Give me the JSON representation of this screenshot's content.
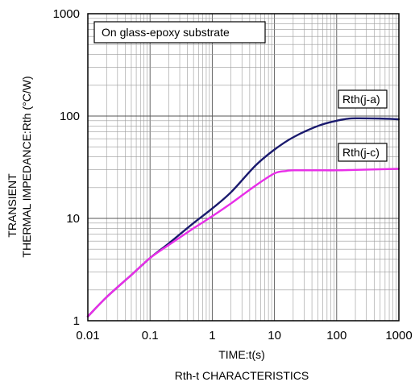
{
  "chart_data": {
    "type": "line",
    "title": "",
    "caption": "Rth-t CHARACTERISTICS",
    "xlabel": "TIME:t(s)",
    "ylabel_line1": "TRANSIENT",
    "ylabel_line2": "THERMAL IMPEDANCE:Rth (°C/W)",
    "x_scale": "log",
    "y_scale": "log",
    "xlim": [
      0.01,
      1000
    ],
    "ylim": [
      1,
      1000
    ],
    "x_ticks": [
      0.01,
      0.1,
      1,
      10,
      100,
      1000
    ],
    "x_tick_labels": [
      "0.01",
      "0.1",
      "1",
      "10",
      "100",
      "1000"
    ],
    "y_ticks": [
      1,
      10,
      100,
      1000
    ],
    "y_tick_labels": [
      "1",
      "10",
      "100",
      "1000"
    ],
    "grid": true,
    "annotation": "On glass-epoxy substrate",
    "series": [
      {
        "name": "Rth(j-a)",
        "color": "#1a1a6e",
        "x": [
          0.01,
          0.02,
          0.05,
          0.1,
          0.2,
          0.5,
          1,
          2,
          5,
          10,
          20,
          50,
          100,
          150,
          200,
          500,
          1000
        ],
        "y": [
          1.1,
          1.7,
          2.8,
          4.1,
          5.7,
          9,
          12.5,
          18,
          33,
          47,
          62,
          80,
          90,
          94,
          95,
          94.5,
          93
        ]
      },
      {
        "name": "Rth(j-c)",
        "color": "#e82ee8",
        "x": [
          0.01,
          0.02,
          0.05,
          0.1,
          0.2,
          0.5,
          1,
          2,
          5,
          10,
          15,
          20,
          50,
          100,
          200,
          500,
          1000
        ],
        "y": [
          1.1,
          1.7,
          2.8,
          4.1,
          5.5,
          8,
          10.5,
          14,
          21,
          27.5,
          29,
          29.5,
          29.5,
          29.5,
          29.8,
          30.2,
          30.5
        ]
      }
    ]
  }
}
